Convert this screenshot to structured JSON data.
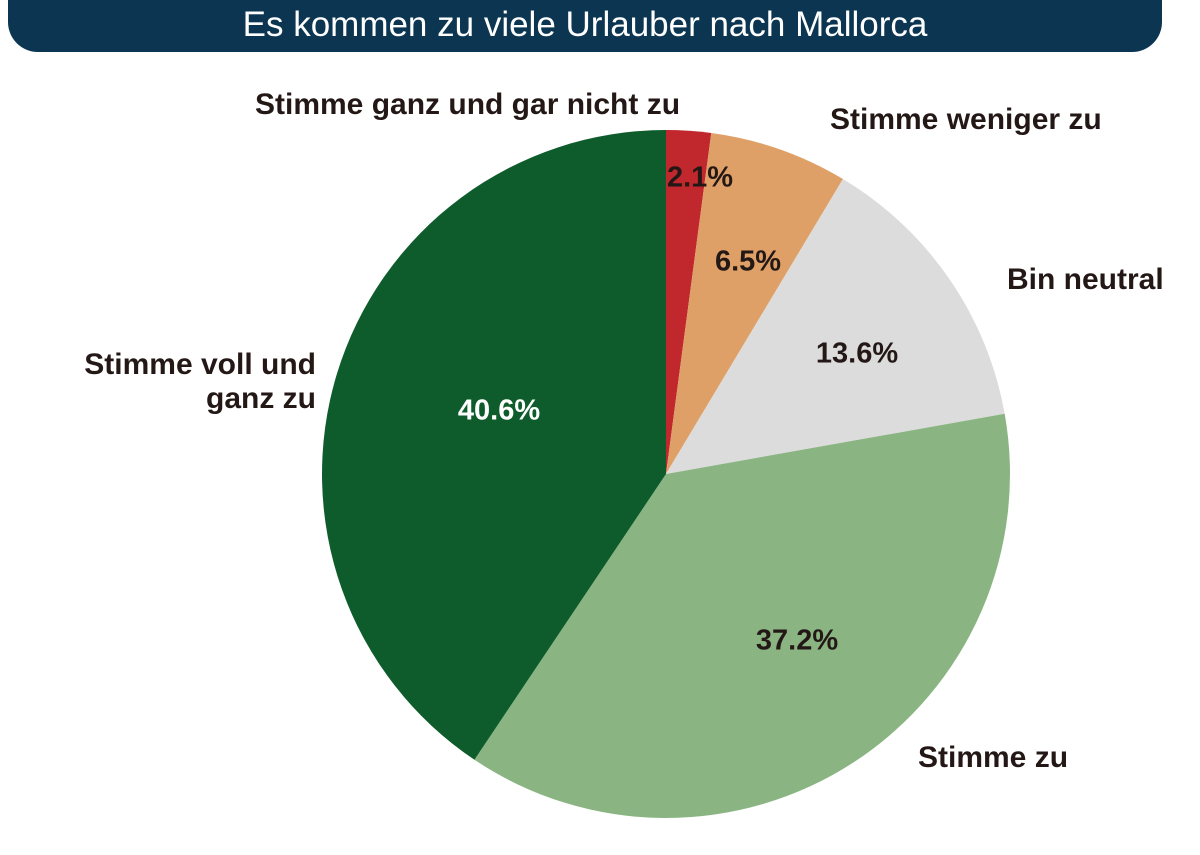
{
  "chart_data": {
    "type": "pie",
    "title": "Es kommen zu viele Urlauber nach Mallorca",
    "start_angle": "12 o'clock",
    "direction": "clockwise",
    "slices": [
      {
        "label": "Stimme ganz und gar nicht zu",
        "value": 2.1,
        "value_label": "2.1%",
        "color": "#c1282e",
        "value_color": "#231815"
      },
      {
        "label": "Stimme weniger zu",
        "value": 6.5,
        "value_label": "6.5%",
        "color": "#dfa068",
        "value_color": "#231815"
      },
      {
        "label": "Bin neutral",
        "value": 13.6,
        "value_label": "13.6%",
        "color": "#dcdcdc",
        "value_color": "#231815"
      },
      {
        "label": "Stimme zu",
        "value": 37.2,
        "value_label": "37.2%",
        "color": "#8ab583",
        "value_color": "#231815"
      },
      {
        "label": "Stimme voll und ganz zu",
        "label_lines": [
          "Stimme voll und",
          "ganz zu"
        ],
        "value": 40.6,
        "value_label": "40.6%",
        "color": "#0e5c2b",
        "value_color": "#ffffff"
      }
    ]
  }
}
